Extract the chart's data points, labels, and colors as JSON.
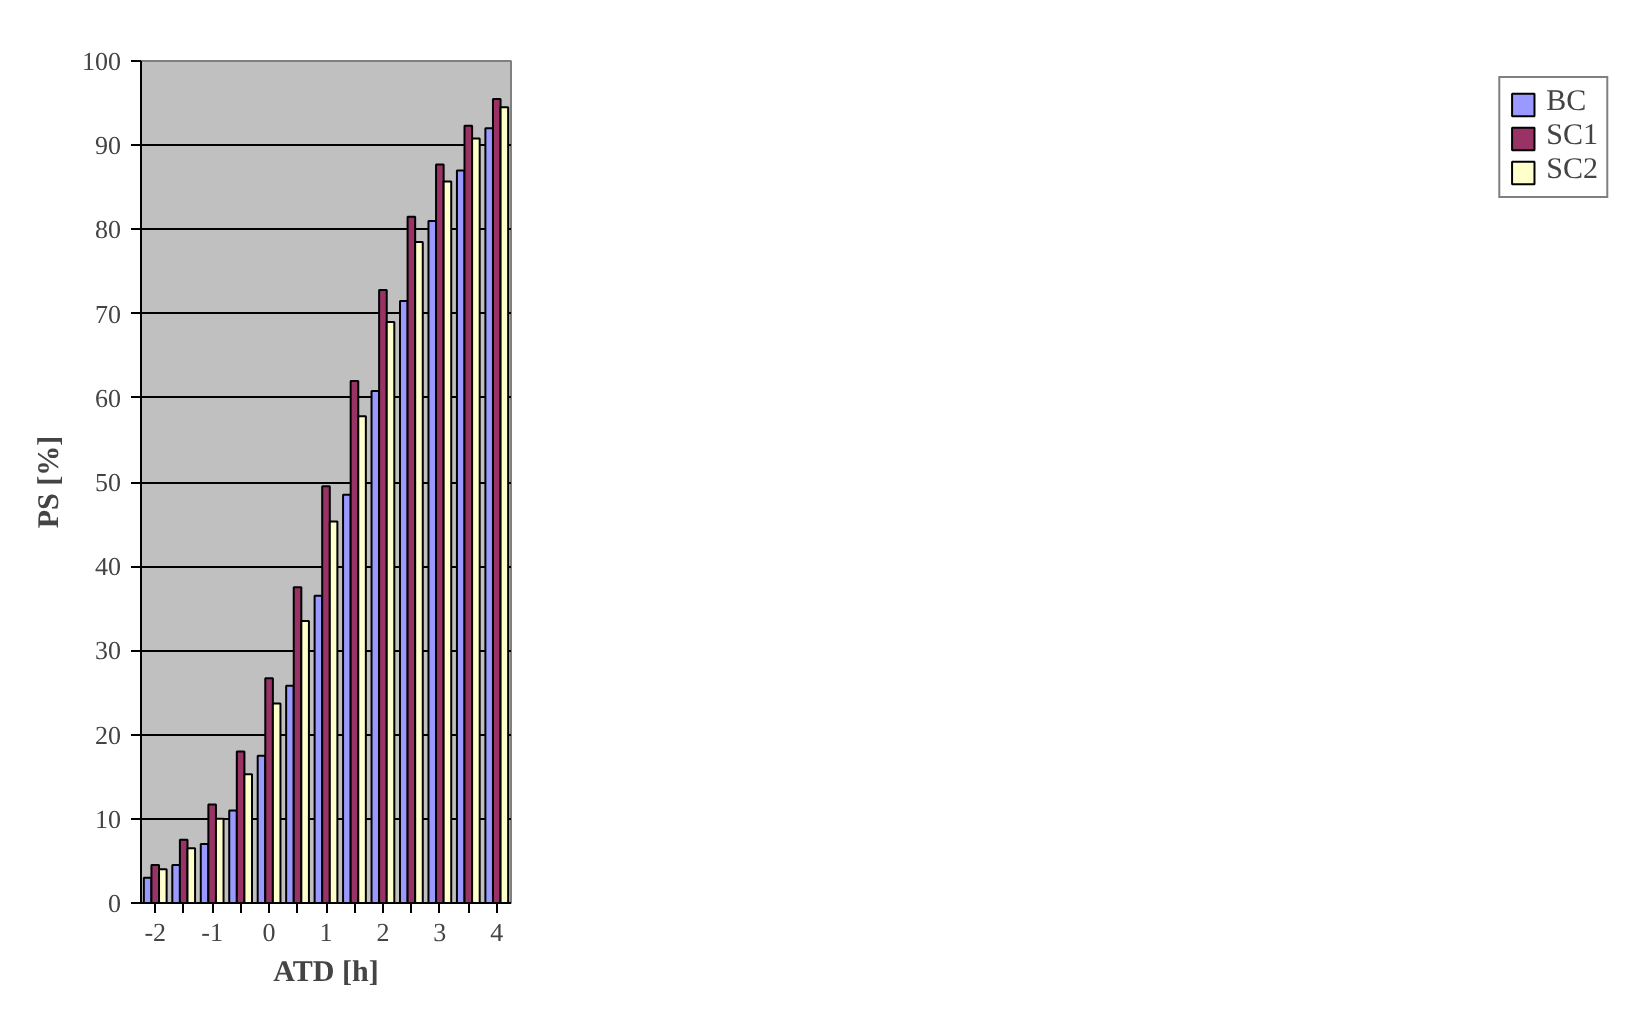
{
  "chart_data": {
    "type": "bar",
    "xlabel": "ATD [h]",
    "ylabel": "PS [%]",
    "categories": [
      "-2",
      null,
      "-1",
      null,
      "0",
      null,
      "1",
      null,
      "2",
      null,
      "3",
      null,
      "4"
    ],
    "series": [
      {
        "name": "BC",
        "color": "#9999ff",
        "values": [
          3,
          4.5,
          7,
          11,
          17.5,
          25.8,
          36.5,
          48.5,
          60.8,
          71.5,
          81,
          87,
          92
        ]
      },
      {
        "name": "SC1",
        "color": "#993366",
        "values": [
          4.5,
          7.5,
          11.7,
          18,
          26.7,
          37.5,
          49.5,
          62,
          72.8,
          81.5,
          87.7,
          92.3,
          95.5
        ]
      },
      {
        "name": "SC2",
        "color": "#ffffcc",
        "values": [
          4,
          6.5,
          10,
          15.3,
          23.7,
          33.5,
          45.3,
          57.8,
          69,
          78.5,
          85.7,
          90.8,
          94.5
        ]
      }
    ],
    "ylim": [
      0,
      100
    ],
    "yticks": [
      0,
      10,
      20,
      30,
      40,
      50,
      60,
      70,
      80,
      90,
      100
    ],
    "grid": "y",
    "legend": "right"
  }
}
